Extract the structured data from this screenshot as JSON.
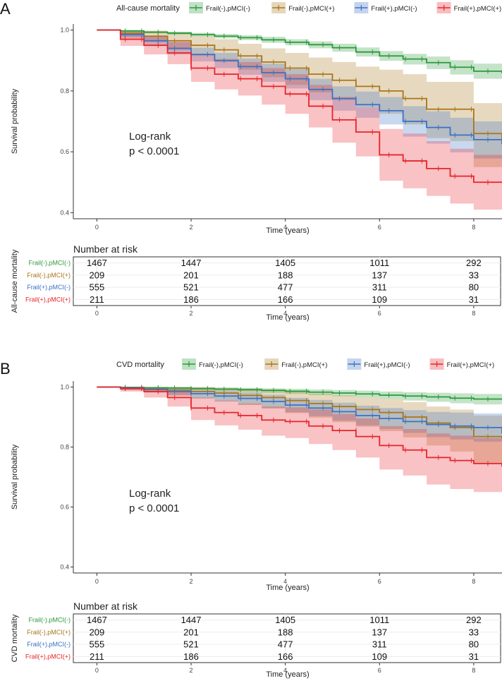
{
  "panels": [
    {
      "letter": "A",
      "legend_title": "All-cause mortality",
      "logrank_line1": "Log-rank",
      "logrank_line2": "p < 0.0001",
      "risk_title": "Number at risk",
      "risk_ylabel": "All-cause mortality"
    },
    {
      "letter": "B",
      "legend_title": "CVD mortality",
      "logrank_line1": "Log-rank",
      "logrank_line2": "p < 0.0001",
      "risk_title": "Number at risk",
      "risk_ylabel": "CVD mortality"
    }
  ],
  "colors": {
    "green": "#2a9a3a",
    "brown": "#a8761b",
    "blue": "#3a72c4",
    "red": "#e8242a"
  },
  "chart_data": [
    {
      "type": "line",
      "subtype": "kaplan-meier",
      "title": "All-cause mortality",
      "xlabel": "Time (years)",
      "ylabel": "Survival probability",
      "xlim": [
        -0.5,
        8.6
      ],
      "ylim": [
        0.38,
        1.02
      ],
      "xticks": [
        0,
        2,
        4,
        6,
        8
      ],
      "yticks": [
        0.4,
        0.6,
        0.8,
        1.0
      ],
      "ytick_labels": [
        "0.4",
        "0.6",
        "0.8",
        "1.0"
      ],
      "series": [
        {
          "name": "Frail(-),pMCI(-)",
          "color_key": "green",
          "x": [
            0,
            0.5,
            1,
            1.5,
            2,
            2.5,
            3,
            3.5,
            4,
            4.5,
            5,
            5.5,
            6,
            6.5,
            7,
            7.5,
            8,
            8.6
          ],
          "y": [
            1.0,
            0.997,
            0.993,
            0.99,
            0.985,
            0.98,
            0.975,
            0.968,
            0.96,
            0.952,
            0.942,
            0.928,
            0.915,
            0.905,
            0.893,
            0.878,
            0.865,
            0.858
          ],
          "lower": [
            1.0,
            0.994,
            0.989,
            0.985,
            0.979,
            0.973,
            0.967,
            0.958,
            0.95,
            0.94,
            0.929,
            0.913,
            0.899,
            0.887,
            0.872,
            0.854,
            0.84,
            0.83
          ],
          "upper": [
            1.0,
            1.0,
            0.997,
            0.995,
            0.991,
            0.987,
            0.983,
            0.978,
            0.97,
            0.963,
            0.955,
            0.943,
            0.931,
            0.922,
            0.913,
            0.901,
            0.89,
            0.885
          ]
        },
        {
          "name": "Frail(-),pMCI(+)",
          "color_key": "brown",
          "x": [
            0,
            0.5,
            1,
            1.5,
            2,
            2.5,
            3,
            3.5,
            4,
            4.5,
            5,
            5.5,
            6,
            6.5,
            7,
            7.5,
            8,
            8.6
          ],
          "y": [
            1.0,
            0.99,
            0.98,
            0.965,
            0.95,
            0.935,
            0.915,
            0.895,
            0.875,
            0.855,
            0.835,
            0.815,
            0.8,
            0.775,
            0.74,
            0.74,
            0.66,
            0.625
          ],
          "lower": [
            1.0,
            0.975,
            0.96,
            0.935,
            0.915,
            0.895,
            0.87,
            0.845,
            0.82,
            0.795,
            0.77,
            0.745,
            0.725,
            0.69,
            0.645,
            0.635,
            0.55,
            0.5
          ],
          "upper": [
            1.0,
            1.0,
            0.998,
            0.99,
            0.98,
            0.97,
            0.955,
            0.94,
            0.925,
            0.91,
            0.895,
            0.88,
            0.87,
            0.855,
            0.83,
            0.83,
            0.76,
            0.745
          ]
        },
        {
          "name": "Frail(+),pMCI(-)",
          "color_key": "blue",
          "x": [
            0,
            0.5,
            1,
            1.5,
            2,
            2.5,
            3,
            3.5,
            4,
            4.5,
            5,
            5.5,
            6,
            6.5,
            7,
            7.5,
            8,
            8.6
          ],
          "y": [
            1.0,
            0.985,
            0.965,
            0.94,
            0.92,
            0.9,
            0.88,
            0.86,
            0.84,
            0.805,
            0.775,
            0.755,
            0.735,
            0.7,
            0.68,
            0.655,
            0.64,
            0.625
          ],
          "lower": [
            1.0,
            0.975,
            0.95,
            0.92,
            0.897,
            0.875,
            0.853,
            0.83,
            0.808,
            0.77,
            0.735,
            0.712,
            0.69,
            0.65,
            0.627,
            0.598,
            0.578,
            0.555
          ],
          "upper": [
            1.0,
            0.995,
            0.98,
            0.96,
            0.942,
            0.925,
            0.907,
            0.89,
            0.872,
            0.84,
            0.815,
            0.798,
            0.78,
            0.75,
            0.733,
            0.712,
            0.7,
            0.69
          ]
        },
        {
          "name": "Frail(+),pMCI(+)",
          "color_key": "red",
          "x": [
            0,
            0.5,
            1,
            1.5,
            2,
            2.5,
            3,
            3.5,
            4,
            4.5,
            5,
            5.5,
            6,
            6.5,
            7,
            7.5,
            8,
            8.6
          ],
          "y": [
            1.0,
            0.97,
            0.95,
            0.925,
            0.875,
            0.855,
            0.84,
            0.815,
            0.79,
            0.75,
            0.705,
            0.665,
            0.59,
            0.57,
            0.545,
            0.52,
            0.5,
            0.5
          ],
          "lower": [
            1.0,
            0.948,
            0.92,
            0.888,
            0.83,
            0.805,
            0.785,
            0.755,
            0.725,
            0.68,
            0.63,
            0.585,
            0.505,
            0.48,
            0.455,
            0.43,
            0.41,
            0.4
          ],
          "upper": [
            1.0,
            0.992,
            0.98,
            0.962,
            0.92,
            0.905,
            0.895,
            0.875,
            0.855,
            0.82,
            0.78,
            0.745,
            0.675,
            0.66,
            0.635,
            0.61,
            0.59,
            0.6
          ]
        }
      ],
      "risk_table": {
        "xticks": [
          0,
          2,
          4,
          6,
          8
        ],
        "rows": [
          {
            "name": "Frail(-),pMCI(-)",
            "color_key": "green",
            "values": [
              "1467",
              "1447",
              "1405",
              "1011",
              "292"
            ]
          },
          {
            "name": "Frail(-),pMCI(+)",
            "color_key": "brown",
            "values": [
              "209",
              "201",
              "188",
              "137",
              "33"
            ]
          },
          {
            "name": "Frail(+),pMCI(-)",
            "color_key": "blue",
            "values": [
              "555",
              "521",
              "477",
              "311",
              "80"
            ]
          },
          {
            "name": "Frail(+),pMCI(+)",
            "color_key": "red",
            "values": [
              "211",
              "186",
              "166",
              "109",
              "31"
            ]
          }
        ],
        "xlabel": "Time (years)"
      }
    },
    {
      "type": "line",
      "subtype": "kaplan-meier",
      "title": "CVD mortality",
      "xlabel": "Time (years)",
      "ylabel": "Survival probability",
      "xlim": [
        -0.5,
        8.6
      ],
      "ylim": [
        0.38,
        1.02
      ],
      "xticks": [
        0,
        2,
        4,
        6,
        8
      ],
      "yticks": [
        0.4,
        0.6,
        0.8,
        1.0
      ],
      "ytick_labels": [
        "0.4",
        "0.6",
        "0.8",
        "1.0"
      ],
      "series": [
        {
          "name": "Frail(-),pMCI(-)",
          "color_key": "green",
          "x": [
            0,
            0.5,
            1,
            1.5,
            2,
            2.5,
            3,
            3.5,
            4,
            4.5,
            5,
            5.5,
            6,
            6.5,
            7,
            7.5,
            8,
            8.6
          ],
          "y": [
            1.0,
            0.999,
            0.998,
            0.997,
            0.995,
            0.993,
            0.991,
            0.989,
            0.986,
            0.983,
            0.98,
            0.977,
            0.973,
            0.97,
            0.967,
            0.963,
            0.96,
            0.958
          ],
          "lower": [
            1.0,
            0.997,
            0.995,
            0.993,
            0.99,
            0.987,
            0.984,
            0.981,
            0.977,
            0.973,
            0.969,
            0.965,
            0.96,
            0.955,
            0.951,
            0.946,
            0.942,
            0.938
          ],
          "upper": [
            1.0,
            1.0,
            1.0,
            1.0,
            0.999,
            0.998,
            0.997,
            0.996,
            0.994,
            0.992,
            0.99,
            0.988,
            0.985,
            0.983,
            0.981,
            0.979,
            0.977,
            0.975
          ]
        },
        {
          "name": "Frail(-),pMCI(+)",
          "color_key": "brown",
          "x": [
            0,
            0.5,
            1,
            1.5,
            2,
            2.5,
            3,
            3.5,
            4,
            4.5,
            5,
            5.5,
            6,
            6.5,
            7,
            7.5,
            8,
            8.6
          ],
          "y": [
            1.0,
            0.998,
            0.995,
            0.99,
            0.985,
            0.98,
            0.972,
            0.965,
            0.955,
            0.945,
            0.935,
            0.925,
            0.915,
            0.9,
            0.88,
            0.865,
            0.835,
            0.83
          ],
          "lower": [
            1.0,
            0.99,
            0.982,
            0.972,
            0.962,
            0.952,
            0.94,
            0.928,
            0.913,
            0.898,
            0.883,
            0.868,
            0.853,
            0.832,
            0.805,
            0.785,
            0.745,
            0.73
          ],
          "upper": [
            1.0,
            1.0,
            1.0,
            1.0,
            1.0,
            0.998,
            0.995,
            0.99,
            0.985,
            0.978,
            0.972,
            0.965,
            0.96,
            0.95,
            0.935,
            0.925,
            0.905,
            0.9
          ]
        },
        {
          "name": "Frail(+),pMCI(-)",
          "color_key": "blue",
          "x": [
            0,
            0.5,
            1,
            1.5,
            2,
            2.5,
            3,
            3.5,
            4,
            4.5,
            5,
            5.5,
            6,
            6.5,
            7,
            7.5,
            8,
            8.6
          ],
          "y": [
            1.0,
            0.997,
            0.992,
            0.985,
            0.978,
            0.97,
            0.962,
            0.952,
            0.94,
            0.93,
            0.918,
            0.905,
            0.895,
            0.885,
            0.875,
            0.87,
            0.865,
            0.845
          ],
          "lower": [
            1.0,
            0.99,
            0.982,
            0.972,
            0.962,
            0.952,
            0.942,
            0.93,
            0.916,
            0.903,
            0.888,
            0.872,
            0.86,
            0.847,
            0.833,
            0.825,
            0.818,
            0.79
          ],
          "upper": [
            1.0,
            1.0,
            1.0,
            0.997,
            0.992,
            0.987,
            0.982,
            0.974,
            0.964,
            0.957,
            0.948,
            0.938,
            0.93,
            0.923,
            0.917,
            0.915,
            0.912,
            0.9
          ]
        },
        {
          "name": "Frail(+),pMCI(+)",
          "color_key": "red",
          "x": [
            0,
            0.5,
            1,
            1.5,
            2,
            2.5,
            3,
            3.5,
            4,
            4.5,
            5,
            5.5,
            6,
            6.5,
            7,
            7.5,
            8,
            8.6
          ],
          "y": [
            1.0,
            0.995,
            0.985,
            0.965,
            0.93,
            0.915,
            0.905,
            0.89,
            0.885,
            0.87,
            0.855,
            0.835,
            0.805,
            0.79,
            0.765,
            0.755,
            0.745,
            0.735
          ],
          "lower": [
            1.0,
            0.985,
            0.965,
            0.935,
            0.89,
            0.872,
            0.858,
            0.838,
            0.83,
            0.81,
            0.79,
            0.765,
            0.725,
            0.705,
            0.675,
            0.66,
            0.65,
            0.655
          ],
          "upper": [
            1.0,
            1.0,
            1.0,
            0.99,
            0.965,
            0.955,
            0.945,
            0.935,
            0.932,
            0.925,
            0.91,
            0.895,
            0.87,
            0.86,
            0.845,
            0.838,
            0.83,
            0.82
          ]
        }
      ],
      "risk_table": {
        "xticks": [
          0,
          2,
          4,
          6,
          8
        ],
        "rows": [
          {
            "name": "Frail(-),pMCI(-)",
            "color_key": "green",
            "values": [
              "1467",
              "1447",
              "1405",
              "1011",
              "292"
            ]
          },
          {
            "name": "Frail(-),pMCI(+)",
            "color_key": "brown",
            "values": [
              "209",
              "201",
              "188",
              "137",
              "33"
            ]
          },
          {
            "name": "Frail(+),pMCI(-)",
            "color_key": "blue",
            "values": [
              "555",
              "521",
              "477",
              "311",
              "80"
            ]
          },
          {
            "name": "Frail(+),pMCI(+)",
            "color_key": "red",
            "values": [
              "211",
              "186",
              "166",
              "109",
              "31"
            ]
          }
        ],
        "xlabel": "Time (years)"
      }
    }
  ]
}
